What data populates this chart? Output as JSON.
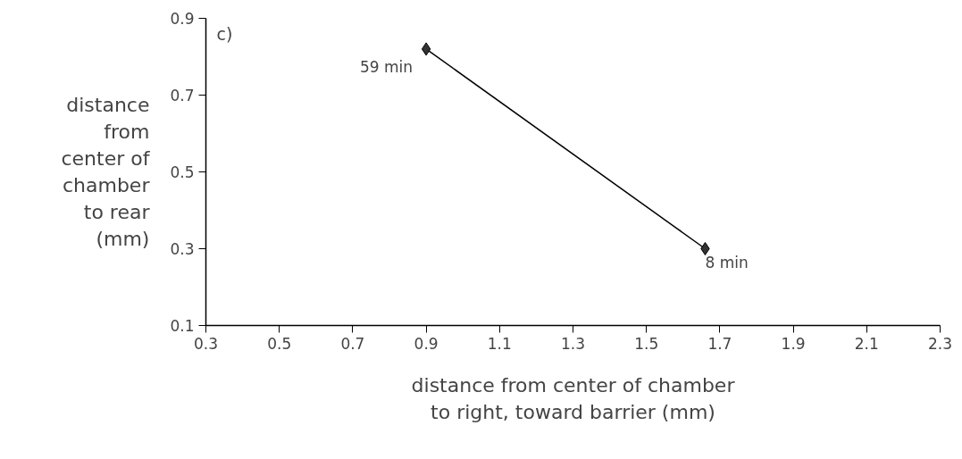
{
  "chart_data": {
    "type": "line",
    "xlabel": "distance from center of chamber\nto right, toward barrier (mm)",
    "ylabel": "distance\nfrom\ncenter of\nchamber\nto rear\n(mm)",
    "x": [
      0.9,
      1.66
    ],
    "series": [
      {
        "color": "#000000",
        "values": [
          0.82,
          0.3
        ]
      }
    ],
    "xlim": [
      0.3,
      2.3
    ],
    "xticks": [
      0.3,
      0.5,
      0.7,
      0.9,
      1.1,
      1.3,
      1.5,
      1.7,
      1.9,
      2.1,
      2.3
    ],
    "ylim": [
      0.1,
      0.9
    ],
    "yticks": [
      0.1,
      0.3,
      0.5,
      0.7,
      0.9
    ],
    "marker": "diamond",
    "line_style": "solid",
    "grid": false,
    "annotations": [
      "c)",
      {
        "text": "59 min",
        "x": 0.9,
        "y": 0.82
      },
      {
        "text": "8 min",
        "x": 1.66,
        "y": 0.3
      }
    ]
  }
}
